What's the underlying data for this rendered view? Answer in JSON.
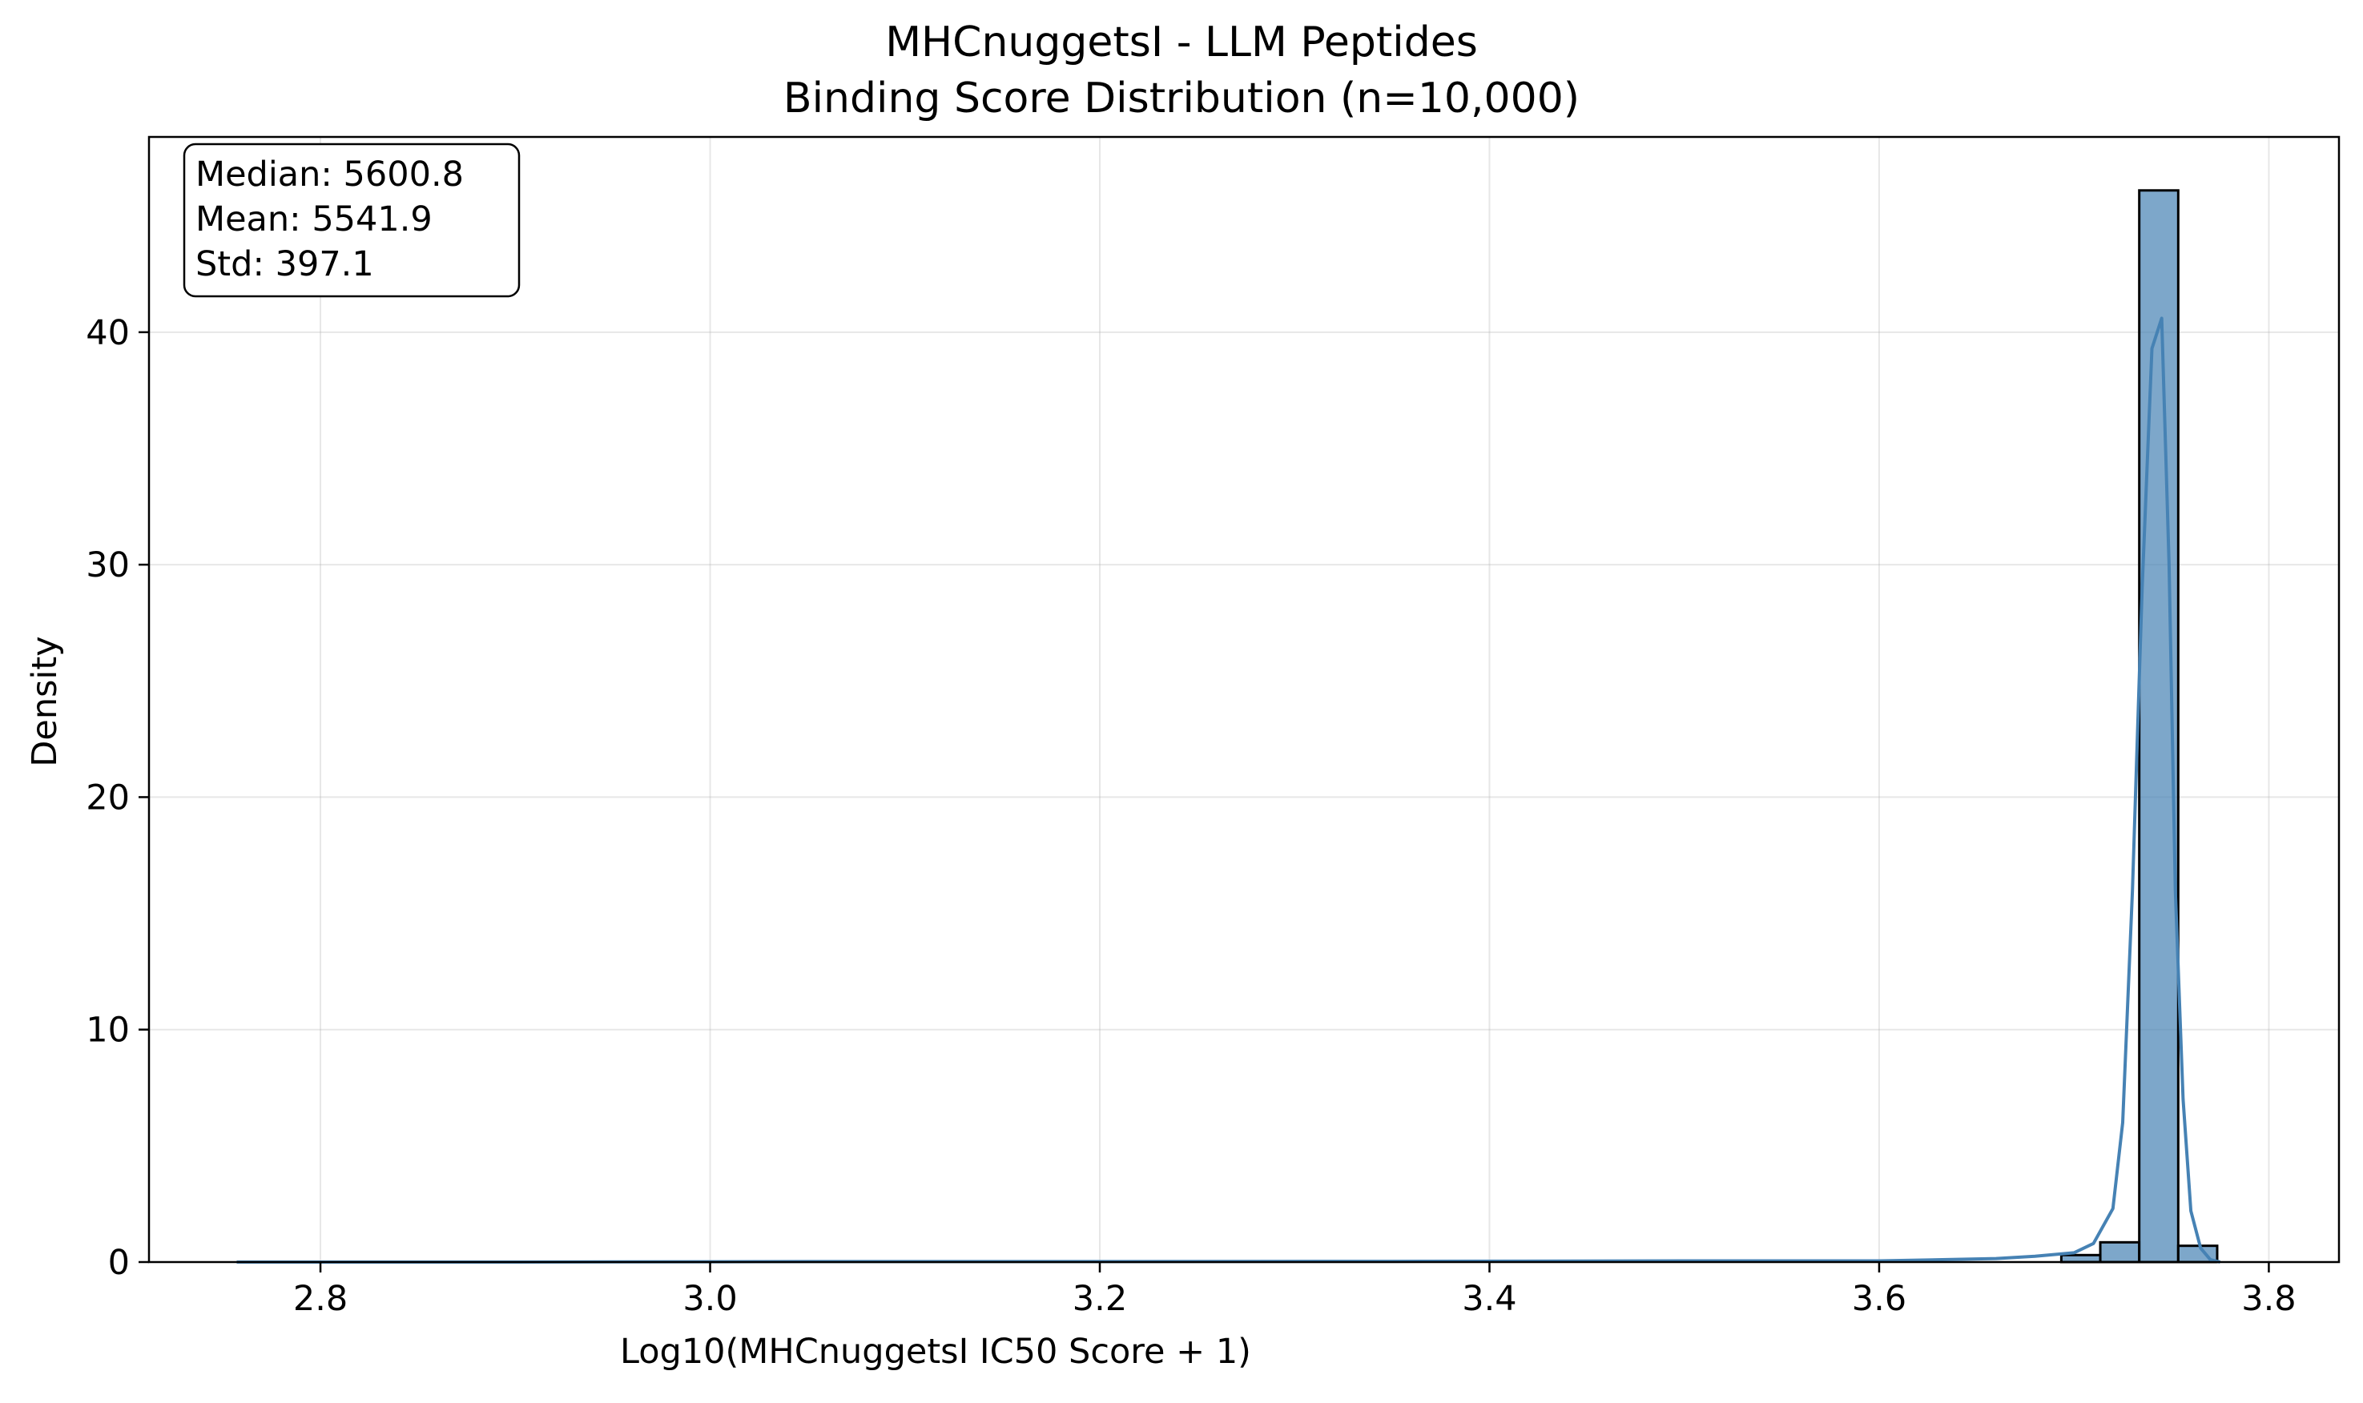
{
  "chart_data": {
    "type": "bar",
    "title": "MHCnuggetsI - LLM Peptides",
    "subtitle": "Binding Score Distribution (n=10,000)",
    "xlabel": "Log10(MHCnuggetsI IC50 Score + 1)",
    "ylabel": "Density",
    "xlim": [
      2.712,
      3.836
    ],
    "ylim": [
      0,
      48.4
    ],
    "xticks": [
      2.8,
      3.0,
      3.2,
      3.4,
      3.6,
      3.8
    ],
    "xtick_labels": [
      "2.8",
      "3.0",
      "3.2",
      "3.4",
      "3.6",
      "3.8"
    ],
    "yticks": [
      0,
      10,
      20,
      30,
      40
    ],
    "ytick_labels": [
      "0",
      "10",
      "20",
      "30",
      "40"
    ],
    "grid": true,
    "bar_color": "#4682b4",
    "line_color": "#4682b4",
    "bars": [
      {
        "x0": 3.6935,
        "x1": 3.7135,
        "value": 0.3
      },
      {
        "x0": 3.7135,
        "x1": 3.7335,
        "value": 0.85
      },
      {
        "x0": 3.7335,
        "x1": 3.7535,
        "value": 46.1
      },
      {
        "x0": 3.7535,
        "x1": 3.7735,
        "value": 0.7
      }
    ],
    "kde": {
      "x": [
        2.757,
        2.9,
        3.05,
        3.2,
        3.35,
        3.5,
        3.6,
        3.63,
        3.66,
        3.68,
        3.7,
        3.71,
        3.72,
        3.725,
        3.73,
        3.735,
        3.74,
        3.745,
        3.7488,
        3.752,
        3.756,
        3.76,
        3.765,
        3.77,
        3.775
      ],
      "y": [
        0.0,
        0.0,
        0.02,
        0.02,
        0.03,
        0.05,
        0.05,
        0.1,
        0.15,
        0.25,
        0.4,
        0.8,
        2.3,
        6.0,
        16.0,
        29.0,
        39.3,
        40.6,
        30.0,
        16.0,
        7.0,
        2.2,
        0.6,
        0.1,
        0.0
      ]
    },
    "stats_box": {
      "lines": [
        "Median: 5600.8",
        "Mean: 5541.9",
        "Std: 397.1"
      ],
      "placement": "top-left"
    }
  }
}
